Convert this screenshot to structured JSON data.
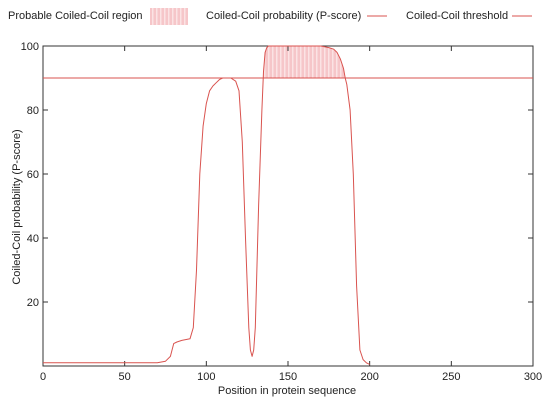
{
  "legend": {
    "region_label": "Probable Coiled-Coil region",
    "probability_label": "Coiled-Coil probability (P-score)",
    "threshold_label": "Coiled-Coil threshold"
  },
  "colors": {
    "line": "#d9534f",
    "region_fill": "#f6c6c9",
    "region_stripe": "#fbe3e4",
    "axis": "#333333",
    "text": "#222222"
  },
  "chart_data": {
    "type": "line",
    "xlabel": "Position in protein sequence",
    "ylabel": "Coiled-Coil probability (P-score)",
    "xlim": [
      0,
      300
    ],
    "ylim": [
      0,
      100
    ],
    "x_ticks": [
      0,
      50,
      100,
      150,
      200,
      250,
      300
    ],
    "y_ticks": [
      20,
      40,
      60,
      80,
      100
    ],
    "grid": false,
    "threshold": 90,
    "legend_position": "top",
    "series": [
      {
        "name": "Coiled-Coil probability (P-score)",
        "x": [
          0,
          70,
          75,
          78,
          80,
          82,
          85,
          90,
          92,
          94,
          96,
          98,
          100,
          102,
          104,
          106,
          108,
          110,
          112,
          115,
          118,
          120,
          122,
          124,
          126,
          127,
          128,
          129,
          130,
          132,
          134,
          135,
          136,
          137,
          138,
          140,
          145,
          150,
          155,
          160,
          165,
          170,
          175,
          178,
          180,
          182,
          184,
          185,
          186,
          188,
          190,
          192,
          194,
          196,
          198,
          200
        ],
        "y": [
          1,
          1,
          1.5,
          3,
          7,
          7.5,
          8,
          8.5,
          12,
          30,
          60,
          75,
          82,
          86,
          87.5,
          88.5,
          89.5,
          90,
          90,
          90,
          89,
          86,
          70,
          40,
          12,
          5,
          3,
          5,
          12,
          50,
          80,
          92,
          98,
          99.5,
          100,
          100,
          100,
          100,
          100,
          100,
          100,
          100,
          99.5,
          99,
          98,
          96,
          93,
          90,
          88,
          80,
          60,
          25,
          5,
          2,
          1,
          0.5
        ]
      }
    ],
    "regions": [
      {
        "label": "Probable Coiled-Coil region",
        "x_start": 135,
        "x_end": 185
      }
    ]
  }
}
